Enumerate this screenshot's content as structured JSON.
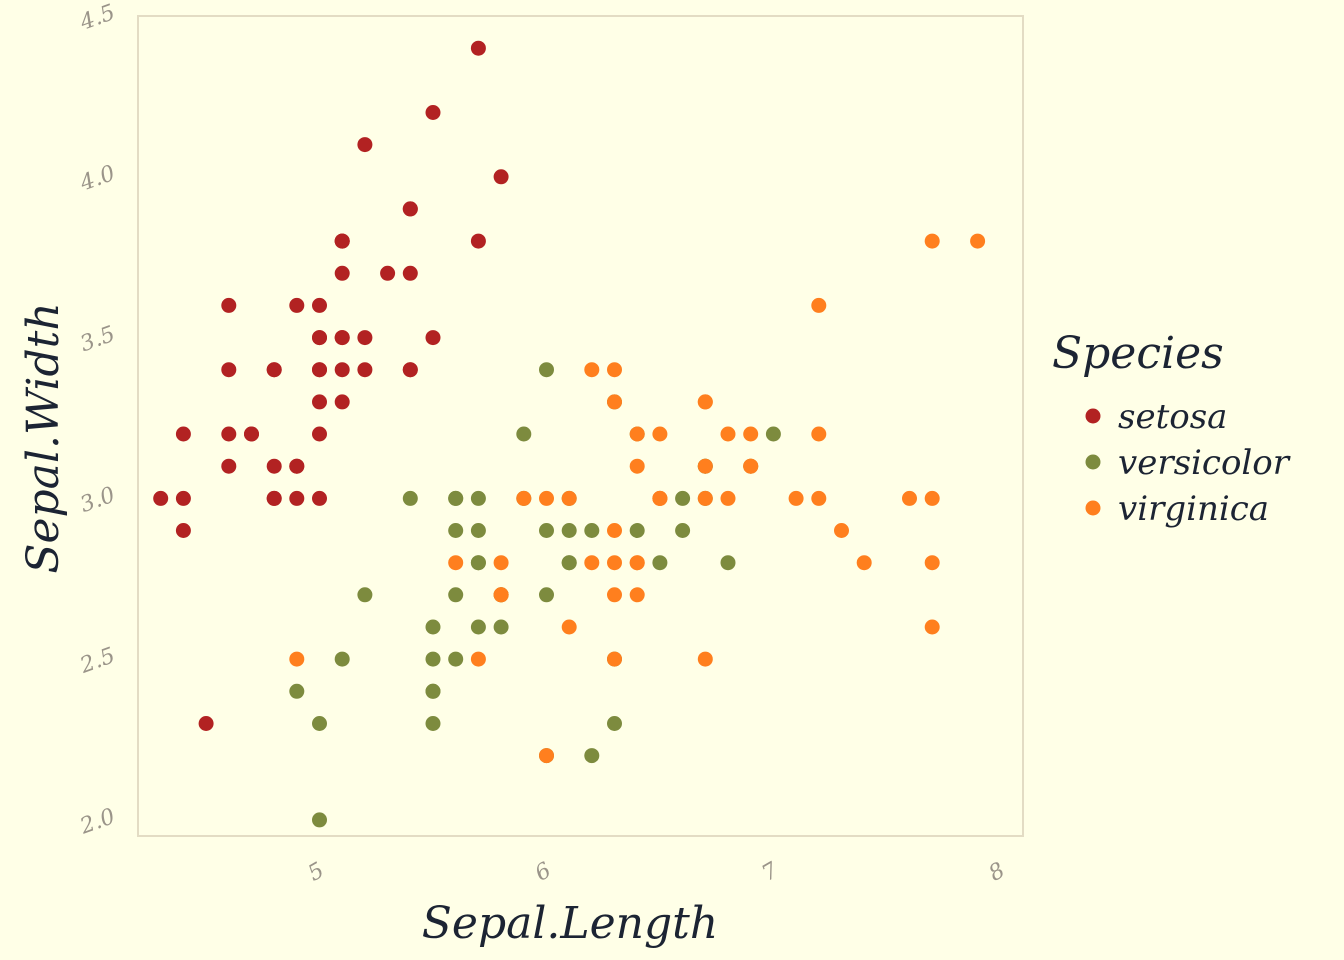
{
  "chart_data": {
    "type": "scatter",
    "xlabel": "Sepal.Length",
    "ylabel": "Sepal.Width",
    "xlim": [
      4.2,
      8.1
    ],
    "ylim": [
      1.95,
      4.5
    ],
    "x_ticks": [
      5,
      6,
      7,
      8
    ],
    "x_tick_labels": [
      "5",
      "6",
      "7",
      "8"
    ],
    "y_ticks": [
      2.0,
      2.5,
      3.0,
      3.5,
      4.0,
      4.5
    ],
    "y_tick_labels": [
      "2.0",
      "2.5",
      "3.0",
      "3.5",
      "4.0",
      "4.5"
    ],
    "grid": false,
    "legend": {
      "title": "Species",
      "position": "right"
    },
    "series": [
      {
        "name": "setosa",
        "color": "#b22222",
        "x": [
          5.1,
          4.9,
          4.7,
          4.6,
          5.0,
          5.4,
          4.6,
          5.0,
          4.4,
          4.9,
          5.4,
          4.8,
          4.8,
          4.3,
          5.8,
          5.7,
          5.4,
          5.1,
          5.7,
          5.1,
          5.4,
          5.1,
          4.6,
          5.1,
          4.8,
          5.0,
          5.0,
          5.2,
          5.2,
          4.7,
          4.8,
          5.4,
          5.2,
          5.5,
          4.9,
          5.0,
          5.5,
          4.9,
          4.4,
          5.1,
          5.0,
          4.5,
          4.4,
          5.0,
          5.1,
          4.8,
          5.1,
          4.6,
          5.3,
          5.0
        ],
        "y": [
          3.5,
          3.0,
          3.2,
          3.1,
          3.6,
          3.9,
          3.4,
          3.4,
          2.9,
          3.1,
          3.7,
          3.4,
          3.0,
          3.0,
          4.0,
          4.4,
          3.9,
          3.5,
          3.8,
          3.8,
          3.4,
          3.7,
          3.6,
          3.3,
          3.4,
          3.0,
          3.4,
          3.5,
          3.4,
          3.2,
          3.1,
          3.4,
          4.1,
          4.2,
          3.1,
          3.2,
          3.5,
          3.6,
          3.0,
          3.4,
          3.5,
          2.3,
          3.2,
          3.5,
          3.8,
          3.0,
          3.8,
          3.2,
          3.7,
          3.3
        ]
      },
      {
        "name": "versicolor",
        "color": "#7d8b3e",
        "x": [
          7.0,
          6.4,
          6.9,
          5.5,
          6.5,
          5.7,
          6.3,
          4.9,
          6.6,
          5.2,
          5.0,
          5.9,
          6.0,
          6.1,
          5.6,
          6.7,
          5.6,
          5.8,
          6.2,
          5.6,
          5.9,
          6.1,
          6.3,
          6.1,
          6.4,
          6.6,
          6.8,
          6.7,
          6.0,
          5.7,
          5.5,
          5.5,
          5.8,
          6.0,
          5.4,
          6.0,
          6.7,
          6.3,
          5.6,
          5.5,
          5.5,
          6.1,
          5.8,
          5.0,
          5.6,
          5.7,
          5.7,
          6.2,
          5.1,
          5.7
        ],
        "y": [
          3.2,
          3.2,
          3.1,
          2.3,
          2.8,
          2.8,
          3.3,
          2.4,
          2.9,
          2.7,
          2.0,
          3.0,
          2.2,
          2.9,
          2.9,
          3.1,
          3.0,
          2.7,
          2.2,
          2.5,
          3.2,
          2.8,
          2.5,
          2.8,
          2.9,
          3.0,
          2.8,
          3.0,
          2.9,
          2.6,
          2.4,
          2.4,
          2.7,
          2.7,
          3.0,
          3.4,
          3.1,
          2.3,
          3.0,
          2.5,
          2.6,
          3.0,
          2.6,
          2.3,
          2.7,
          3.0,
          2.9,
          2.9,
          2.5,
          2.8
        ]
      },
      {
        "name": "virginica",
        "color": "#ff7f1e",
        "x": [
          6.3,
          5.8,
          7.1,
          6.3,
          6.5,
          7.6,
          4.9,
          7.3,
          6.7,
          7.2,
          6.5,
          6.4,
          6.8,
          5.7,
          5.8,
          6.4,
          6.5,
          7.7,
          7.7,
          6.0,
          6.9,
          5.6,
          7.7,
          6.3,
          6.7,
          7.2,
          6.2,
          6.1,
          6.4,
          7.2,
          7.4,
          7.9,
          6.4,
          6.3,
          6.1,
          7.7,
          6.3,
          6.4,
          6.0,
          6.9,
          6.7,
          6.9,
          5.8,
          6.8,
          6.7,
          6.7,
          6.3,
          6.5,
          6.2,
          5.9
        ],
        "y": [
          3.3,
          2.7,
          3.0,
          2.9,
          3.0,
          3.0,
          2.5,
          2.9,
          2.5,
          3.6,
          3.2,
          2.7,
          3.0,
          2.5,
          2.8,
          3.2,
          3.0,
          3.8,
          2.6,
          2.2,
          3.2,
          2.8,
          2.8,
          2.7,
          3.3,
          3.2,
          2.8,
          3.0,
          2.8,
          3.0,
          2.8,
          3.8,
          2.8,
          2.8,
          2.6,
          3.0,
          3.4,
          3.1,
          3.0,
          3.1,
          3.1,
          3.1,
          2.7,
          3.2,
          3.3,
          3.0,
          2.5,
          3.0,
          3.4,
          3.0
        ]
      }
    ]
  }
}
